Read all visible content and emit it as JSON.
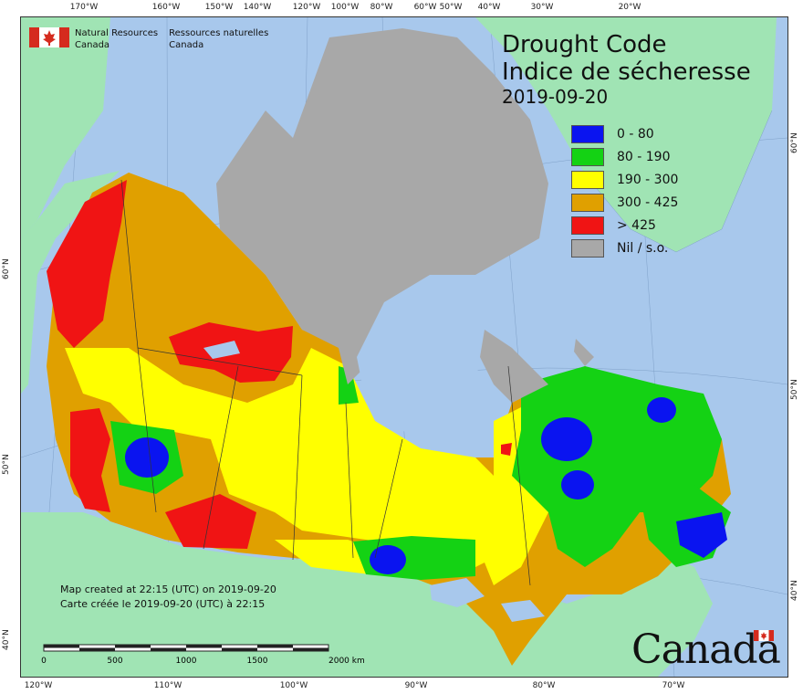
{
  "title": {
    "line1": "Drought Code",
    "line2": "Indice de sécheresse",
    "date": "2019-09-20"
  },
  "legend": [
    {
      "label": "0 - 80",
      "color": "#0a14f0"
    },
    {
      "label": "80 - 190",
      "color": "#14d214"
    },
    {
      "label": "190 - 300",
      "color": "#ffff00"
    },
    {
      "label": "300 - 425",
      "color": "#e0a000"
    },
    {
      "label": "> 425",
      "color": "#f01414"
    },
    {
      "label": "Nil / s.o.",
      "color": "#a8a8a8"
    }
  ],
  "agency": {
    "en_line1": "Natural Resources",
    "en_line2": "Canada",
    "fr_line1": "Ressources naturelles",
    "fr_line2": "Canada"
  },
  "credit": {
    "en": "Map created at 22:15 (UTC) on 2019-09-20",
    "fr": "Carte créée le 2019-09-20 (UTC) à 22:15"
  },
  "scale": {
    "labels": [
      "0",
      "500",
      "1000",
      "1500",
      "2000 km"
    ]
  },
  "wordmark": "Canada",
  "ticks": {
    "top": [
      "170°W",
      "160°W",
      "150°W",
      "140°W",
      "120°W",
      "100°W",
      "80°W",
      "60°W",
      "50°W",
      "40°W",
      "30°W",
      "20°W"
    ],
    "bottom": [
      "120°W",
      "110°W",
      "100°W",
      "90°W",
      "80°W",
      "70°W"
    ],
    "left": [
      "60°N",
      "50°N",
      "40°N"
    ],
    "right": [
      "60°N",
      "50°N",
      "40°N"
    ]
  },
  "colors": {
    "ocean": "#a8c8ec",
    "land": "#a0e4b4",
    "nil": "#a8a8a8"
  }
}
